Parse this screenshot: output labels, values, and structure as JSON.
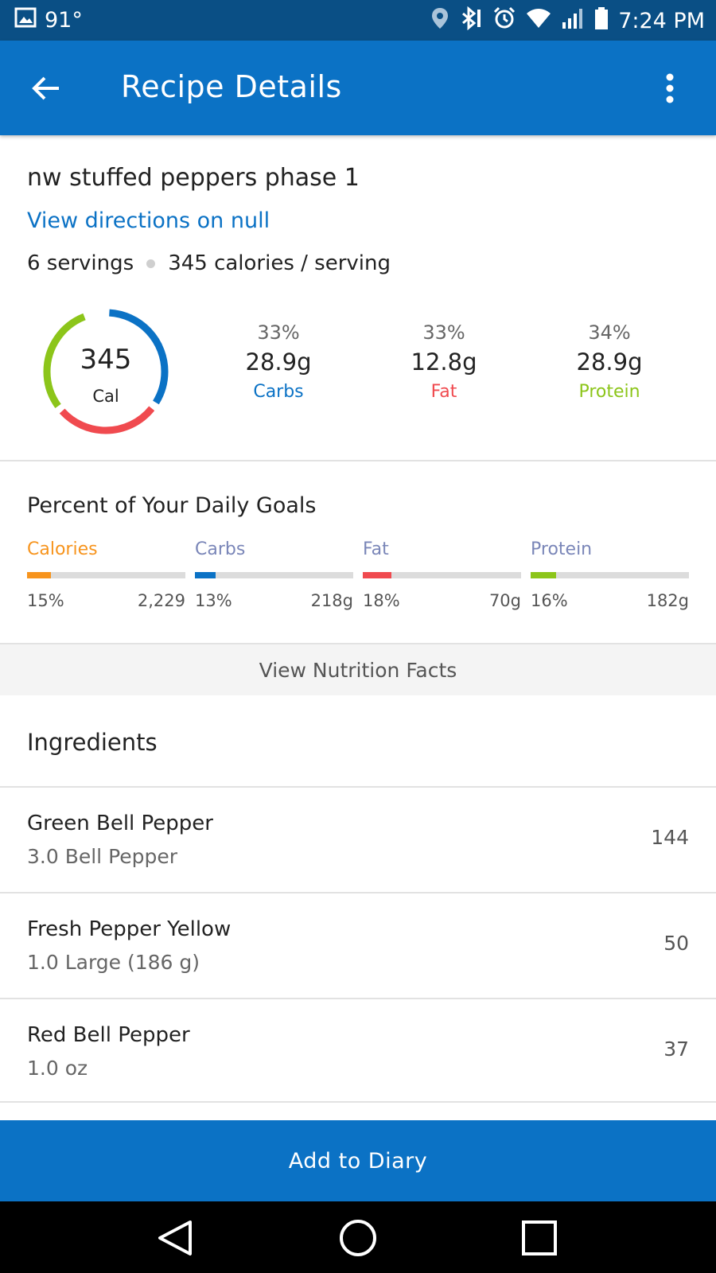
{
  "status_bar": {
    "temperature": "91°",
    "time": "7:24 PM"
  },
  "app_bar": {
    "title": "Recipe Details",
    "back_icon": "arrow-left-icon",
    "menu_icon": "more-vertical-icon"
  },
  "recipe": {
    "name": "nw stuffed peppers phase 1",
    "directions_link": "View directions on null",
    "servings": "6 servings",
    "calories_per_serving": "345 calories / serving"
  },
  "summary": {
    "calories": "345",
    "calories_unit": "Cal",
    "macros": [
      {
        "pct": "33%",
        "grams": "28.9g",
        "label": "Carbs",
        "color": "#0b72c5"
      },
      {
        "pct": "33%",
        "grams": "12.8g",
        "label": "Fat",
        "color": "#f04a4f"
      },
      {
        "pct": "34%",
        "grams": "28.9g",
        "label": "Protein",
        "color": "#8cc51a"
      }
    ]
  },
  "daily_goals": {
    "title": "Percent of Your Daily Goals",
    "items": [
      {
        "label": "Calories",
        "pct": "15%",
        "goal": "2,229",
        "fill": 0.15,
        "color": "#f7941d",
        "label_color": "#f7941d"
      },
      {
        "label": "Carbs",
        "pct": "13%",
        "goal": "218g",
        "fill": 0.13,
        "color": "#0b72c5",
        "label_color": "#7a86b8"
      },
      {
        "label": "Fat",
        "pct": "18%",
        "goal": "70g",
        "fill": 0.18,
        "color": "#f04a4f",
        "label_color": "#7a86b8"
      },
      {
        "label": "Protein",
        "pct": "16%",
        "goal": "182g",
        "fill": 0.16,
        "color": "#8cc51a",
        "label_color": "#7a86b8"
      }
    ]
  },
  "nutrition_button": "View Nutrition Facts",
  "ingredients": {
    "title": "Ingredients",
    "items": [
      {
        "name": "Green Bell Pepper",
        "quantity": "3.0 Bell Pepper",
        "calories": "144"
      },
      {
        "name": "Fresh Pepper Yellow",
        "quantity": "1.0 Large (186 g)",
        "calories": "50"
      },
      {
        "name": "Red Bell Pepper",
        "quantity": "1.0 oz",
        "calories": "37"
      }
    ]
  },
  "add_button": "Add to Diary"
}
